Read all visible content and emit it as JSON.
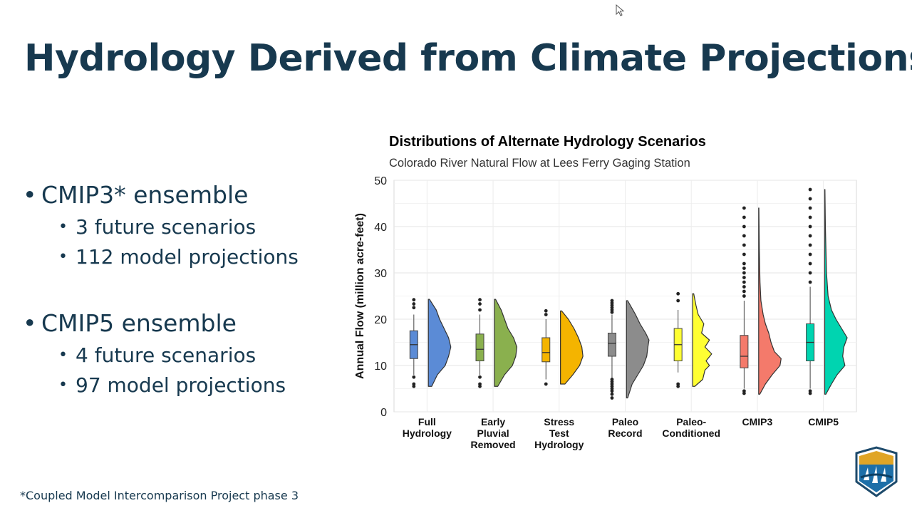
{
  "slide": {
    "title": "Hydrology Derived from Climate Projections",
    "bullets": [
      {
        "text": "CMIP3* ensemble",
        "sub": [
          "3 future scenarios",
          "112 model projections"
        ]
      },
      {
        "text": "CMIP5 ensemble",
        "sub": [
          "4 future scenarios",
          "97 model projections"
        ]
      }
    ],
    "footnote": "*Coupled Model Intercomparison Project phase 3",
    "logo_icon": "reclamation-logo-icon"
  },
  "chart_data": {
    "type": "box-violin",
    "title": "Distributions of Alternate Hydrology Scenarios",
    "subtitle": "Colorado River Natural Flow at Lees Ferry Gaging Station",
    "ylabel": "Annual Flow (million acre-feet)",
    "xlabel": "",
    "ylim": [
      0,
      50
    ],
    "yticks": [
      0,
      10,
      20,
      30,
      40,
      50
    ],
    "grid": true,
    "categories": [
      {
        "label": [
          "Full",
          "Hydrology"
        ],
        "color": "#5b8bd6",
        "box": {
          "min": 8,
          "q1": 11.5,
          "median": 14.5,
          "q3": 17.5,
          "max": 21
        },
        "outliers": [
          5.5,
          6,
          7.5,
          22.5,
          23.3,
          24.2
        ],
        "violin_range": [
          5.5,
          24.3
        ],
        "shape": [
          [
            5.5,
            0.15
          ],
          [
            8,
            0.4
          ],
          [
            10,
            0.75
          ],
          [
            12,
            0.9
          ],
          [
            14,
            1.0
          ],
          [
            16,
            0.9
          ],
          [
            18,
            0.7
          ],
          [
            20,
            0.5
          ],
          [
            22,
            0.35
          ],
          [
            24.3,
            0.05
          ]
        ]
      },
      {
        "label": [
          "Early",
          "Pluvial",
          "Removed"
        ],
        "color": "#8ab04e",
        "box": {
          "min": 8,
          "q1": 11,
          "median": 13.5,
          "q3": 16.8,
          "max": 21
        },
        "outliers": [
          5.5,
          6,
          7.5,
          22,
          23.3,
          24.2
        ],
        "violin_range": [
          5.5,
          24.3
        ],
        "shape": [
          [
            5.5,
            0.15
          ],
          [
            8,
            0.45
          ],
          [
            10,
            0.8
          ],
          [
            12,
            0.95
          ],
          [
            14,
            1.0
          ],
          [
            16,
            0.85
          ],
          [
            18,
            0.6
          ],
          [
            20,
            0.45
          ],
          [
            22,
            0.3
          ],
          [
            24.3,
            0.05
          ]
        ]
      },
      {
        "label": [
          "Stress",
          "Test",
          "Hydrology"
        ],
        "color": "#f4b400",
        "box": {
          "min": 7,
          "q1": 10.8,
          "median": 12.8,
          "q3": 16,
          "max": 20
        },
        "outliers": [
          6,
          21,
          21.8
        ],
        "violin_range": [
          6,
          21.8
        ],
        "shape": [
          [
            6,
            0.2
          ],
          [
            8,
            0.55
          ],
          [
            10,
            0.85
          ],
          [
            12,
            1.0
          ],
          [
            14,
            0.95
          ],
          [
            16,
            0.8
          ],
          [
            18,
            0.6
          ],
          [
            20,
            0.35
          ],
          [
            21.8,
            0.05
          ]
        ]
      },
      {
        "label": [
          "Paleo",
          "Record"
        ],
        "color": "#8c8c8c",
        "box": {
          "min": 7,
          "q1": 12,
          "median": 14.8,
          "q3": 17,
          "max": 21
        },
        "outliers": [
          3,
          3.8,
          4.5,
          5,
          5.5,
          6,
          6.5,
          7,
          21.5,
          22,
          22.5,
          23,
          23.5,
          24
        ],
        "violin_range": [
          3,
          24
        ],
        "shape": [
          [
            3,
            0.05
          ],
          [
            6,
            0.25
          ],
          [
            8,
            0.5
          ],
          [
            10,
            0.75
          ],
          [
            12,
            0.9
          ],
          [
            14,
            0.95
          ],
          [
            15.5,
            1.0
          ],
          [
            17,
            0.85
          ],
          [
            19,
            0.6
          ],
          [
            21,
            0.4
          ],
          [
            24,
            0.05
          ]
        ]
      },
      {
        "label": [
          "Paleo-",
          "Conditioned"
        ],
        "color": "#ffff33",
        "box": {
          "min": 8.5,
          "q1": 11,
          "median": 14.5,
          "q3": 18,
          "max": 22
        },
        "outliers": [
          5.5,
          6,
          24,
          25.5
        ],
        "violin_range": [
          5.5,
          25.5
        ],
        "shape": [
          [
            5.5,
            0.1
          ],
          [
            7,
            0.45
          ],
          [
            9,
            0.55
          ],
          [
            10,
            0.75
          ],
          [
            11,
            0.6
          ],
          [
            12.5,
            0.85
          ],
          [
            14,
            0.55
          ],
          [
            15.5,
            0.75
          ],
          [
            17,
            0.4
          ],
          [
            19,
            0.5
          ],
          [
            21,
            0.25
          ],
          [
            23,
            0.15
          ],
          [
            25.5,
            0.05
          ]
        ]
      },
      {
        "label": [
          "CMIP3"
        ],
        "color": "#f47a6b",
        "box": {
          "min": 5,
          "q1": 9.5,
          "median": 12,
          "q3": 16.5,
          "max": 24
        },
        "outliers": [
          4,
          4.5,
          25,
          26,
          27,
          28,
          29,
          30,
          31,
          32,
          34,
          36,
          38,
          40,
          42,
          44
        ],
        "violin_range": [
          3.8,
          44
        ],
        "shape": [
          [
            3.8,
            0.05
          ],
          [
            6,
            0.3
          ],
          [
            8,
            0.6
          ],
          [
            10,
            0.95
          ],
          [
            11.5,
            1.0
          ],
          [
            13,
            0.7
          ],
          [
            15,
            0.55
          ],
          [
            17,
            0.45
          ],
          [
            19,
            0.3
          ],
          [
            21,
            0.2
          ],
          [
            24,
            0.1
          ],
          [
            28,
            0.06
          ],
          [
            35,
            0.03
          ],
          [
            44,
            0.01
          ]
        ]
      },
      {
        "label": [
          "CMIP5"
        ],
        "color": "#00d4b0",
        "box": {
          "min": 5,
          "q1": 11,
          "median": 15,
          "q3": 19,
          "max": 27
        },
        "outliers": [
          4,
          4.5,
          28,
          30,
          32,
          34,
          36,
          38,
          40,
          42,
          44,
          46,
          48
        ],
        "violin_range": [
          3.8,
          48
        ],
        "shape": [
          [
            3.8,
            0.05
          ],
          [
            6,
            0.3
          ],
          [
            8,
            0.55
          ],
          [
            10,
            0.9
          ],
          [
            12,
            0.8
          ],
          [
            14,
            0.85
          ],
          [
            16,
            1.0
          ],
          [
            18,
            0.75
          ],
          [
            20,
            0.5
          ],
          [
            22,
            0.3
          ],
          [
            25,
            0.15
          ],
          [
            30,
            0.08
          ],
          [
            40,
            0.03
          ],
          [
            48,
            0.01
          ]
        ]
      }
    ]
  }
}
